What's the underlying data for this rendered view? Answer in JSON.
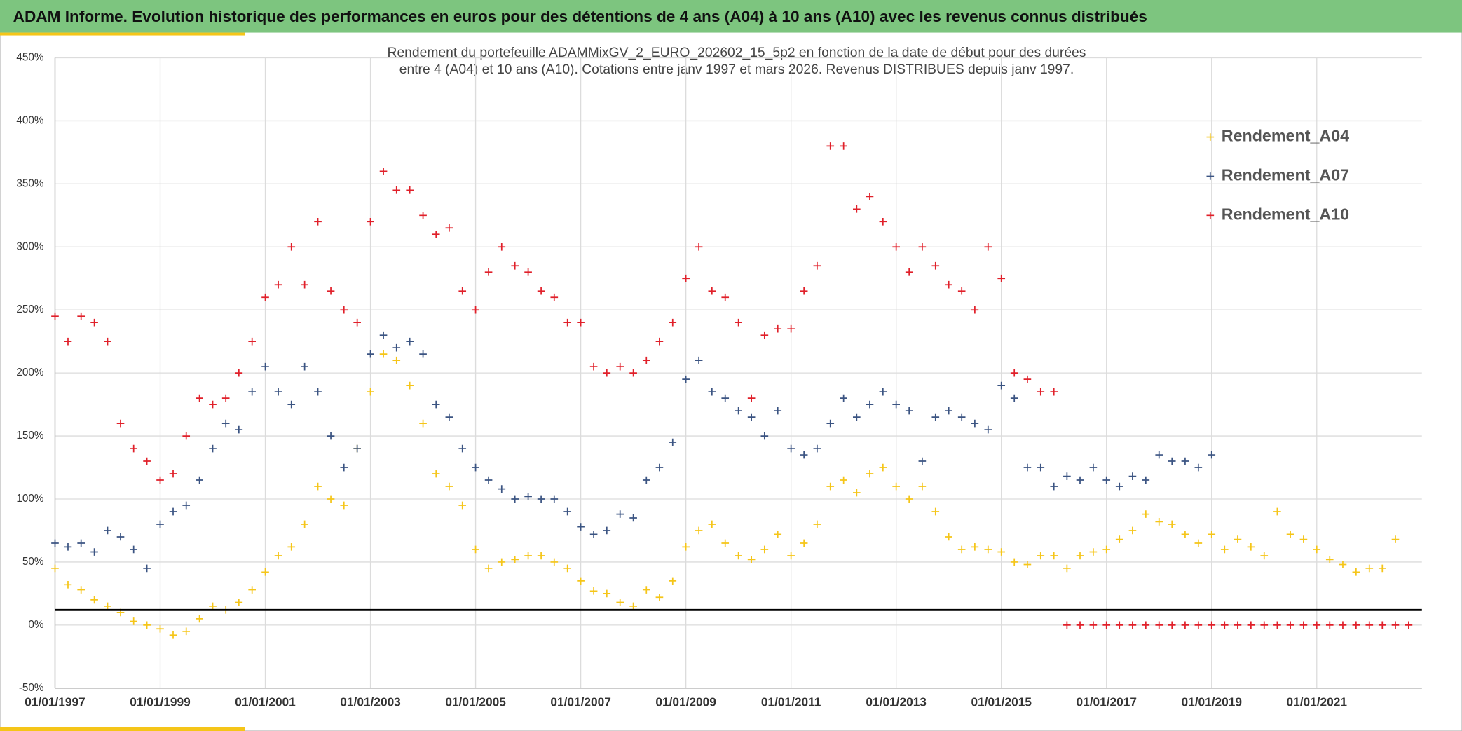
{
  "chart_data": {
    "type": "scatter",
    "title": "ADAM Informe. Evolution historique des performances en euros pour des détentions de 4 ans (A04) à 10 ans (A10) avec les revenus connus distribués",
    "subtitle": [
      "Rendement du portefeuille ADAMMixGV_2_EURO_202602_15_5p2  en fonction de la date de début pour des durées",
      "entre 4 (A04) et 10 ans (A10). Cotations entre janv 1997 et mars 2026. Revenus DISTRIBUES depuis janv 1997."
    ],
    "x": [
      "01/01/1997",
      "01/04/1997",
      "01/07/1997",
      "01/10/1997",
      "01/01/1998",
      "01/04/1998",
      "01/07/1998",
      "01/10/1998",
      "01/01/1999",
      "01/04/1999",
      "01/07/1999",
      "01/10/1999",
      "01/01/2000",
      "01/04/2000",
      "01/07/2000",
      "01/10/2000",
      "01/01/2001",
      "01/04/2001",
      "01/07/2001",
      "01/10/2001",
      "01/01/2002",
      "01/04/2002",
      "01/07/2002",
      "01/10/2002",
      "01/01/2003",
      "01/04/2003",
      "01/07/2003",
      "01/10/2003",
      "01/01/2004",
      "01/04/2004",
      "01/07/2004",
      "01/10/2004",
      "01/01/2005",
      "01/04/2005",
      "01/07/2005",
      "01/10/2005",
      "01/01/2006",
      "01/04/2006",
      "01/07/2006",
      "01/10/2006",
      "01/01/2007",
      "01/04/2007",
      "01/07/2007",
      "01/10/2007",
      "01/01/2008",
      "01/04/2008",
      "01/07/2008",
      "01/10/2008",
      "01/01/2009",
      "01/04/2009",
      "01/07/2009",
      "01/10/2009",
      "01/01/2010",
      "01/04/2010",
      "01/07/2010",
      "01/10/2010",
      "01/01/2011",
      "01/04/2011",
      "01/07/2011",
      "01/10/2011",
      "01/01/2012",
      "01/04/2012",
      "01/07/2012",
      "01/10/2012",
      "01/01/2013",
      "01/04/2013",
      "01/07/2013",
      "01/10/2013",
      "01/01/2014",
      "01/04/2014",
      "01/07/2014",
      "01/10/2014",
      "01/01/2015",
      "01/04/2015",
      "01/07/2015",
      "01/10/2015",
      "01/01/2016",
      "01/04/2016",
      "01/07/2016",
      "01/10/2016",
      "01/01/2017",
      "01/04/2017",
      "01/07/2017",
      "01/10/2017",
      "01/01/2018",
      "01/04/2018",
      "01/07/2018",
      "01/10/2018",
      "01/01/2019",
      "01/04/2019",
      "01/07/2019",
      "01/10/2019",
      "01/01/2020",
      "01/04/2020",
      "01/07/2020",
      "01/10/2020",
      "01/01/2021",
      "01/04/2021",
      "01/07/2021",
      "01/10/2021",
      "01/01/2022",
      "01/04/2022",
      "01/07/2022",
      "01/10/2022"
    ],
    "series": [
      {
        "name": "Rendement_A04",
        "color": "#f5c518",
        "values": [
          45,
          32,
          28,
          20,
          15,
          10,
          3,
          0,
          -3,
          -8,
          -5,
          5,
          15,
          12,
          18,
          28,
          42,
          55,
          62,
          80,
          110,
          100,
          95,
          140,
          185,
          215,
          210,
          190,
          160,
          120,
          110,
          95,
          60,
          45,
          50,
          52,
          55,
          55,
          50,
          45,
          35,
          27,
          25,
          18,
          15,
          28,
          22,
          35,
          62,
          75,
          80,
          65,
          55,
          52,
          60,
          72,
          55,
          65,
          80,
          110,
          115,
          105,
          120,
          125,
          110,
          100,
          110,
          90,
          70,
          60,
          62,
          60,
          58,
          50,
          48,
          55,
          55,
          45,
          55,
          58,
          60,
          68,
          75,
          88,
          82,
          80,
          72,
          65,
          72,
          60,
          68,
          62,
          55,
          90,
          72,
          68,
          60,
          52,
          48,
          42,
          45,
          45,
          68,
          null
        ]
      },
      {
        "name": "Rendement_A07",
        "color": "#3b5482",
        "values": [
          65,
          62,
          65,
          58,
          75,
          70,
          60,
          45,
          80,
          90,
          95,
          115,
          140,
          160,
          155,
          185,
          205,
          185,
          175,
          205,
          185,
          150,
          125,
          140,
          215,
          230,
          220,
          225,
          215,
          175,
          165,
          140,
          125,
          115,
          108,
          100,
          102,
          100,
          100,
          90,
          78,
          72,
          75,
          88,
          85,
          115,
          125,
          145,
          195,
          210,
          185,
          180,
          170,
          165,
          150,
          170,
          140,
          135,
          140,
          160,
          180,
          165,
          175,
          185,
          175,
          170,
          130,
          165,
          170,
          165,
          160,
          155,
          190,
          180,
          125,
          125,
          110,
          118,
          115,
          125,
          115,
          110,
          118,
          115,
          135,
          130,
          130,
          125,
          135,
          null,
          null,
          null,
          null,
          null,
          null,
          null,
          null,
          null,
          null,
          null,
          null,
          null,
          null,
          null
        ]
      },
      {
        "name": "Rendement_A10",
        "color": "#e0202a",
        "values": [
          245,
          225,
          245,
          240,
          225,
          160,
          140,
          130,
          115,
          120,
          150,
          180,
          175,
          180,
          200,
          225,
          260,
          270,
          300,
          270,
          320,
          265,
          250,
          240,
          320,
          360,
          345,
          345,
          325,
          310,
          315,
          265,
          250,
          280,
          300,
          285,
          280,
          265,
          260,
          240,
          240,
          205,
          200,
          205,
          200,
          210,
          225,
          240,
          275,
          300,
          265,
          260,
          240,
          180,
          230,
          235,
          235,
          265,
          285,
          380,
          380,
          330,
          340,
          320,
          300,
          280,
          300,
          285,
          270,
          265,
          250,
          300,
          275,
          200,
          195,
          185,
          185,
          0,
          0,
          0,
          0,
          0,
          0,
          0,
          0,
          0,
          0,
          0,
          0,
          0,
          0,
          0,
          0,
          0,
          0,
          0,
          0,
          0,
          0,
          0,
          0,
          0,
          0,
          0
        ]
      }
    ],
    "hline": 12,
    "xlim": [
      "01/01/1997",
      "01/01/2023"
    ],
    "xticks": [
      "01/01/1997",
      "01/01/1999",
      "01/01/2001",
      "01/01/2003",
      "01/01/2005",
      "01/01/2007",
      "01/01/2009",
      "01/01/2011",
      "01/01/2013",
      "01/01/2015",
      "01/01/2017",
      "01/01/2019",
      "01/01/2021"
    ],
    "ylim": [
      -50,
      450
    ],
    "yticks": [
      {
        "value": -50,
        "label": "-50%"
      },
      {
        "value": 0,
        "label": "0%"
      },
      {
        "value": 50,
        "label": "50%"
      },
      {
        "value": 100,
        "label": "100%"
      },
      {
        "value": 150,
        "label": "150%"
      },
      {
        "value": 200,
        "label": "200%"
      },
      {
        "value": 250,
        "label": "250%"
      },
      {
        "value": 300,
        "label": "300%"
      },
      {
        "value": 350,
        "label": "350%"
      },
      {
        "value": 400,
        "label": "400%"
      },
      {
        "value": 450,
        "label": "450%"
      }
    ],
    "grid": true,
    "legend": "right"
  }
}
